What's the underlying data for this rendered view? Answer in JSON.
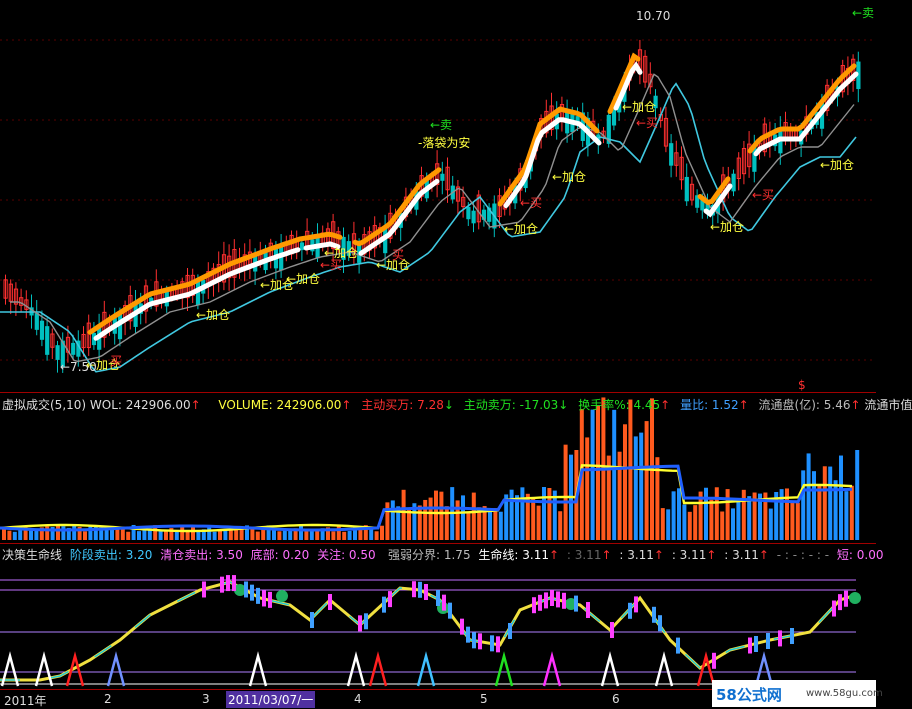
{
  "price_panel": {
    "high_label": "10.70",
    "annotations": {
      "sell_top": "←卖",
      "sell_mid": "←卖",
      "safe": "-落袋为安",
      "add": "←加仓",
      "buy": "←买",
      "low": "←7.50",
      "buy_small": "买",
      "tag": "$"
    },
    "colors": {
      "up": "#ff3030",
      "down": "#00c8c8",
      "orange": "#ff9900",
      "white": "#ffffff",
      "cyan": "#40c8e0",
      "gray": "#a0a0a0"
    }
  },
  "volume_panel": {
    "title": "虚拟成交(5,10)",
    "vol_label": "WOL: 242906.00",
    "volume_label": "VOLUME: 242906.00",
    "active_buy": "主动买万: 7.28",
    "active_sell": "主动卖万: -17.03",
    "turnover": "换手率%: 4.45",
    "volume_ratio": "量比: 1.52",
    "float_cap": "流通盘(亿): 5.46",
    "market_cap": "流通市值"
  },
  "indicator_panel": {
    "title": "决策生命线",
    "stage_sell": "阶段卖出: 3.20",
    "clear_sell": "清仓卖出: 3.50",
    "bottom": "底部: 0.20",
    "watch": "关注: 0.50",
    "strength": "强弱分界: 1.75",
    "lifeline": "生命线: 3.11",
    "v1": ": 3.11",
    "v2": ": 3.11",
    "v3": ": 3.11",
    "v4": ": 3.11",
    "dashes": "- : - : - : -",
    "short": "短: 0.00"
  },
  "time_axis": {
    "labels": [
      "2011年",
      "2",
      "3",
      "2011/03/07/一",
      "4",
      "5",
      "6"
    ],
    "watermark": "58公式网",
    "watermark_url": "www.58gu.com"
  }
}
